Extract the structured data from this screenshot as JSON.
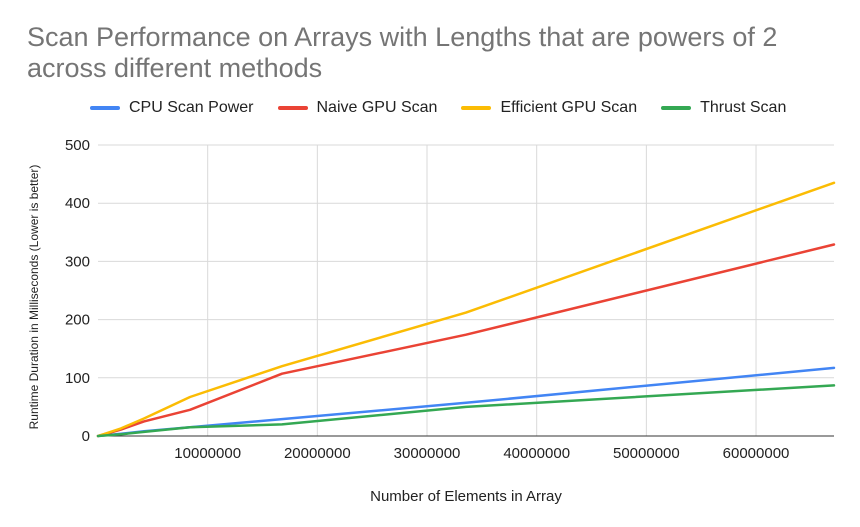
{
  "chart_data": {
    "type": "line",
    "title": "Scan Performance on Arrays with Lengths that are powers of 2 across different methods",
    "xlabel": "Number of Elements in Array",
    "ylabel": "Runtime Duration in Milliseconds (Lower is better)",
    "xlim": [
      0,
      67108864
    ],
    "ylim": [
      0,
      500
    ],
    "yticks": [
      0,
      100,
      200,
      300,
      400,
      500
    ],
    "xticks": [
      10000000,
      20000000,
      30000000,
      40000000,
      50000000,
      60000000
    ],
    "xtick_labels": [
      "10000000",
      "20000000",
      "30000000",
      "40000000",
      "50000000",
      "60000000"
    ],
    "grid": true,
    "legend_position": "top",
    "x": [
      0,
      2097152,
      4194304,
      8388608,
      16777216,
      33554432,
      67108864
    ],
    "series": [
      {
        "name": "CPU Scan Power",
        "color": "#4285f4",
        "values": [
          0,
          4,
          8,
          15,
          29,
          57,
          117
        ]
      },
      {
        "name": "Naive GPU Scan",
        "color": "#ea4335",
        "values": [
          0,
          11,
          25,
          45,
          107,
          174,
          329
        ]
      },
      {
        "name": "Efficient GPU Scan",
        "color": "#fbbc04",
        "values": [
          0,
          13,
          30,
          67,
          120,
          212,
          435
        ]
      },
      {
        "name": "Thrust Scan",
        "color": "#34a853",
        "values": [
          0,
          3,
          7,
          15,
          20,
          50,
          87
        ]
      }
    ]
  }
}
